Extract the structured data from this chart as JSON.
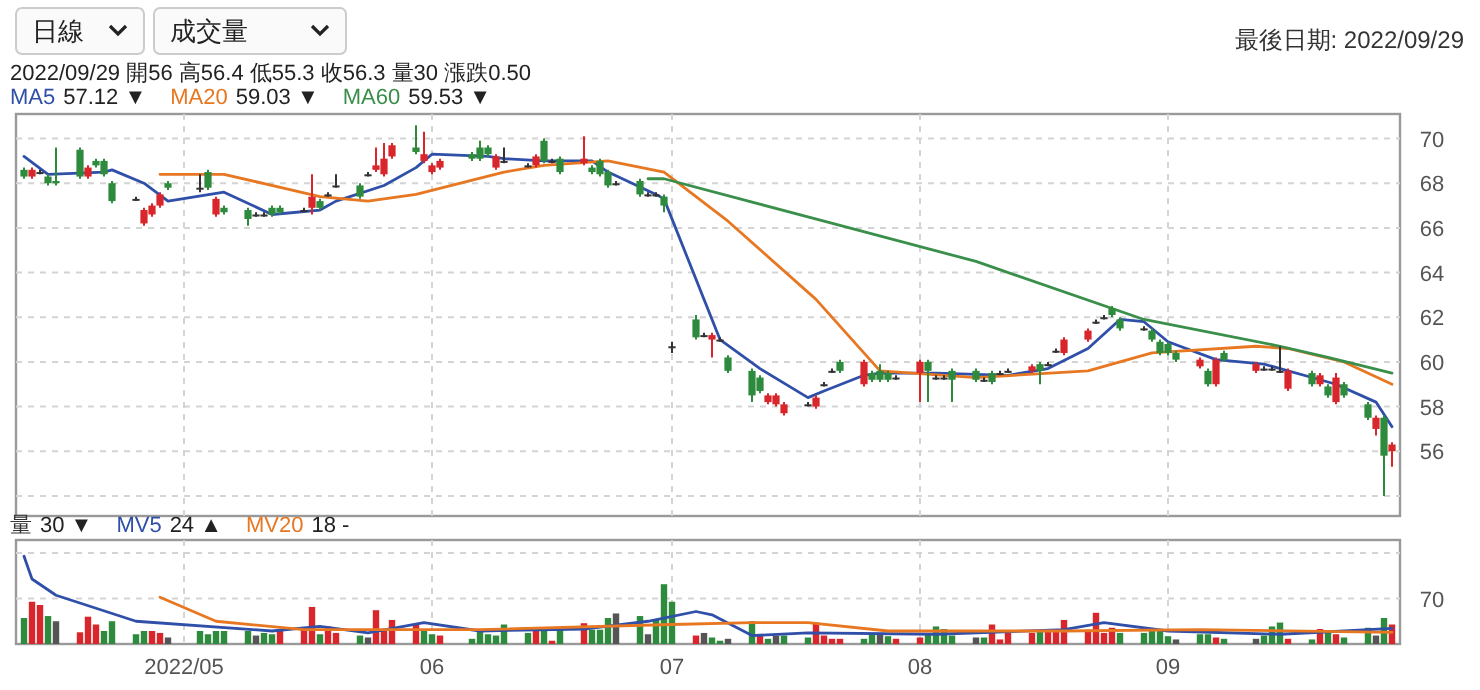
{
  "chart_data": [
    {
      "type": "candlestick",
      "legend": "top left",
      "grid": true,
      "tick_labels": "y",
      "xlim": [
        "2022-04-10",
        "2022-09-30"
      ],
      "xticks": [
        {
          "value": "2022-05-01",
          "label": null
        },
        {
          "value": "2022-06-01",
          "label": null
        },
        {
          "value": "2022-07-01",
          "label": null
        },
        {
          "value": "2022-08-01",
          "label": null
        },
        {
          "value": "2022-09-01",
          "label": null
        }
      ],
      "ylim": [
        53.1,
        71.1
      ],
      "yticks": [
        {
          "value": 54,
          "label": null
        },
        56,
        58,
        60,
        62,
        64,
        66,
        68,
        70
      ],
      "annotations": [
        "57.12 ▼",
        "59.03 ▼",
        "59.53 ▼",
        "2022/09/29 開56 高56.4 低55.3 收56.3 量30 漲跌0.50",
        "最後日期: 2022/09/29",
        "日線",
        "成交量"
      ],
      "x": [
        "2022-04-11",
        "2022-04-12",
        "2022-04-13",
        "2022-04-14",
        "2022-04-15",
        "2022-04-18",
        "2022-04-19",
        "2022-04-20",
        "2022-04-21",
        "2022-04-22",
        "2022-04-25",
        "2022-04-26",
        "2022-04-27",
        "2022-04-28",
        "2022-04-29",
        "2022-05-03",
        "2022-05-04",
        "2022-05-05",
        "2022-05-06",
        "2022-05-09",
        "2022-05-10",
        "2022-05-11",
        "2022-05-12",
        "2022-05-13",
        "2022-05-16",
        "2022-05-17",
        "2022-05-18",
        "2022-05-19",
        "2022-05-20",
        "2022-05-23",
        "2022-05-24",
        "2022-05-25",
        "2022-05-26",
        "2022-05-27",
        "2022-05-30",
        "2022-05-31",
        "2022-06-01",
        "2022-06-02",
        "2022-06-06",
        "2022-06-07",
        "2022-06-08",
        "2022-06-09",
        "2022-06-10",
        "2022-06-13",
        "2022-06-14",
        "2022-06-15",
        "2022-06-16",
        "2022-06-17",
        "2022-06-20",
        "2022-06-21",
        "2022-06-22",
        "2022-06-23",
        "2022-06-24",
        "2022-06-27",
        "2022-06-28",
        "2022-06-29",
        "2022-06-30",
        "2022-07-01",
        "2022-07-04",
        "2022-07-05",
        "2022-07-06",
        "2022-07-07",
        "2022-07-08",
        "2022-07-11",
        "2022-07-12",
        "2022-07-13",
        "2022-07-14",
        "2022-07-15",
        "2022-07-18",
        "2022-07-19",
        "2022-07-20",
        "2022-07-21",
        "2022-07-22",
        "2022-07-25",
        "2022-07-26",
        "2022-07-27",
        "2022-07-28",
        "2022-07-29",
        "2022-08-01",
        "2022-08-02",
        "2022-08-03",
        "2022-08-04",
        "2022-08-05",
        "2022-08-08",
        "2022-08-09",
        "2022-08-10",
        "2022-08-11",
        "2022-08-12",
        "2022-08-15",
        "2022-08-16",
        "2022-08-17",
        "2022-08-18",
        "2022-08-19",
        "2022-08-22",
        "2022-08-23",
        "2022-08-24",
        "2022-08-25",
        "2022-08-26",
        "2022-08-29",
        "2022-08-30",
        "2022-08-31",
        "2022-09-01",
        "2022-09-02",
        "2022-09-05",
        "2022-09-06",
        "2022-09-07",
        "2022-09-08",
        "2022-09-12",
        "2022-09-13",
        "2022-09-14",
        "2022-09-15",
        "2022-09-16",
        "2022-09-19",
        "2022-09-20",
        "2022-09-21",
        "2022-09-22",
        "2022-09-23",
        "2022-09-26",
        "2022-09-27",
        "2022-09-28",
        "2022-09-29"
      ],
      "ohlc": [
        [
          68.6,
          68.7,
          68.2,
          68.3
        ],
        [
          68.3,
          68.7,
          68.2,
          68.6
        ],
        [
          68.5,
          68.6,
          68.4,
          68.5
        ],
        [
          68.3,
          68.4,
          67.9,
          68.0
        ],
        [
          68.1,
          69.6,
          67.9,
          68.0
        ],
        [
          69.5,
          69.6,
          68.2,
          68.3
        ],
        [
          68.3,
          68.8,
          68.2,
          68.7
        ],
        [
          69.0,
          69.1,
          68.7,
          68.8
        ],
        [
          69.0,
          69.1,
          68.3,
          68.4
        ],
        [
          68.0,
          68.1,
          67.1,
          67.2
        ],
        [
          67.3,
          67.4,
          67.2,
          67.3
        ],
        [
          66.2,
          66.9,
          66.1,
          66.8
        ],
        [
          66.6,
          67.1,
          66.5,
          67.0
        ],
        [
          67.0,
          67.6,
          66.9,
          67.5
        ],
        [
          68.0,
          68.1,
          67.7,
          67.8
        ],
        [
          67.8,
          68.4,
          67.6,
          67.8
        ],
        [
          68.5,
          68.6,
          67.7,
          67.8
        ],
        [
          66.6,
          67.4,
          66.5,
          67.3
        ],
        [
          66.9,
          67.0,
          66.6,
          66.7
        ],
        [
          66.8,
          66.9,
          66.1,
          66.4
        ],
        [
          66.6,
          66.7,
          66.5,
          66.6
        ],
        [
          66.6,
          66.7,
          66.5,
          66.6
        ],
        [
          66.9,
          67.0,
          66.5,
          66.6
        ],
        [
          66.9,
          67.0,
          66.6,
          66.7
        ],
        [
          66.8,
          66.9,
          66.7,
          66.8
        ],
        [
          66.9,
          68.4,
          66.6,
          67.4
        ],
        [
          67.2,
          67.3,
          66.8,
          66.9
        ],
        [
          67.5,
          67.6,
          67.4,
          67.5
        ],
        [
          67.9,
          68.4,
          67.8,
          67.9
        ],
        [
          67.9,
          68.0,
          67.3,
          67.4
        ],
        [
          68.4,
          68.5,
          68.3,
          68.4
        ],
        [
          68.6,
          69.6,
          68.5,
          68.8
        ],
        [
          68.4,
          69.8,
          68.3,
          69.1
        ],
        [
          69.2,
          69.8,
          69.1,
          69.7
        ],
        [
          69.6,
          70.6,
          69.3,
          69.4
        ],
        [
          69.0,
          70.3,
          68.9,
          69.3
        ],
        [
          68.5,
          68.9,
          68.4,
          68.8
        ],
        [
          68.7,
          69.1,
          68.6,
          69.0
        ],
        [
          69.3,
          69.4,
          69.0,
          69.1
        ],
        [
          69.6,
          69.9,
          69.0,
          69.1
        ],
        [
          69.6,
          69.7,
          69.2,
          69.3
        ],
        [
          68.7,
          69.3,
          68.6,
          69.2
        ],
        [
          69.0,
          69.6,
          68.9,
          69.0
        ],
        [
          68.8,
          68.9,
          68.7,
          68.8
        ],
        [
          68.8,
          69.3,
          68.7,
          69.2
        ],
        [
          69.9,
          70.0,
          68.9,
          69.0
        ],
        [
          69.0,
          69.1,
          68.9,
          69.0
        ],
        [
          69.1,
          69.2,
          68.4,
          68.5
        ],
        [
          68.9,
          70.1,
          68.8,
          69.1
        ],
        [
          68.7,
          68.8,
          68.4,
          68.5
        ],
        [
          69.0,
          69.1,
          68.3,
          68.4
        ],
        [
          68.5,
          68.6,
          67.8,
          67.9
        ],
        [
          68.0,
          68.1,
          67.9,
          68.0
        ],
        [
          68.1,
          68.2,
          67.4,
          67.5
        ],
        [
          67.5,
          67.6,
          67.4,
          67.5
        ],
        [
          67.5,
          67.6,
          67.4,
          67.5
        ],
        [
          67.4,
          67.5,
          66.7,
          67.0
        ],
        [
          60.7,
          60.9,
          60.4,
          60.7
        ],
        [
          61.9,
          62.1,
          61.0,
          61.1
        ],
        [
          61.2,
          61.3,
          61.1,
          61.2
        ],
        [
          61.0,
          61.3,
          60.2,
          61.2
        ],
        [
          61.0,
          61.1,
          60.9,
          61.0
        ],
        [
          60.2,
          60.3,
          59.5,
          59.6
        ],
        [
          59.6,
          59.7,
          58.2,
          58.5
        ],
        [
          59.3,
          59.4,
          58.6,
          58.7
        ],
        [
          58.2,
          58.6,
          58.1,
          58.5
        ],
        [
          58.1,
          58.6,
          58.0,
          58.5
        ],
        [
          57.7,
          58.2,
          57.6,
          58.1
        ],
        [
          58.1,
          58.2,
          58.0,
          58.1
        ],
        [
          58.0,
          58.5,
          57.9,
          58.4
        ],
        [
          59.0,
          59.1,
          58.9,
          59.0
        ],
        [
          59.6,
          59.7,
          59.5,
          59.6
        ],
        [
          60.0,
          60.1,
          59.5,
          59.6
        ],
        [
          59.0,
          60.1,
          58.9,
          60.0
        ],
        [
          59.5,
          59.6,
          59.1,
          59.2
        ],
        [
          59.6,
          59.9,
          59.1,
          59.2
        ],
        [
          59.5,
          59.6,
          59.1,
          59.2
        ],
        [
          59.3,
          59.4,
          59.2,
          59.3
        ],
        [
          59.5,
          60.1,
          58.2,
          60.0
        ],
        [
          60.0,
          60.1,
          58.2,
          59.6
        ],
        [
          59.3,
          59.4,
          59.2,
          59.3
        ],
        [
          59.3,
          59.4,
          59.2,
          59.3
        ],
        [
          59.6,
          59.7,
          58.2,
          59.2
        ],
        [
          59.6,
          59.7,
          59.1,
          59.2
        ],
        [
          59.2,
          59.3,
          59.1,
          59.2
        ],
        [
          59.5,
          59.6,
          59.0,
          59.1
        ],
        [
          59.5,
          59.6,
          59.4,
          59.5
        ],
        [
          59.6,
          59.7,
          59.5,
          59.6
        ],
        [
          59.6,
          59.9,
          59.5,
          59.8
        ],
        [
          59.9,
          60.0,
          59.0,
          59.6
        ],
        [
          59.9,
          60.0,
          59.8,
          59.9
        ],
        [
          60.5,
          60.6,
          60.4,
          60.5
        ],
        [
          60.4,
          61.1,
          60.3,
          61.0
        ],
        [
          61.0,
          61.5,
          60.9,
          61.4
        ],
        [
          61.8,
          61.9,
          61.7,
          61.8
        ],
        [
          62.0,
          62.1,
          61.9,
          62.0
        ],
        [
          62.4,
          62.5,
          62.0,
          62.1
        ],
        [
          61.9,
          62.0,
          61.4,
          61.5
        ],
        [
          61.5,
          61.6,
          61.4,
          61.5
        ],
        [
          61.4,
          61.5,
          60.9,
          61.0
        ],
        [
          60.9,
          61.0,
          60.3,
          60.4
        ],
        [
          60.8,
          60.9,
          60.3,
          60.4
        ],
        [
          60.4,
          60.5,
          60.0,
          60.1
        ],
        [
          59.8,
          60.2,
          59.7,
          60.1
        ],
        [
          59.6,
          59.7,
          58.9,
          59.0
        ],
        [
          59.0,
          60.2,
          58.9,
          60.1
        ],
        [
          60.4,
          60.5,
          60.0,
          60.1
        ],
        [
          59.6,
          60.0,
          59.5,
          59.9
        ],
        [
          59.7,
          59.8,
          59.6,
          59.7
        ],
        [
          59.7,
          59.8,
          59.6,
          59.7
        ],
        [
          59.6,
          60.7,
          59.5,
          59.6
        ],
        [
          58.8,
          59.7,
          58.7,
          59.6
        ],
        [
          59.5,
          59.6,
          58.9,
          59.0
        ],
        [
          59.0,
          59.5,
          58.9,
          59.4
        ],
        [
          58.9,
          59.0,
          58.4,
          58.5
        ],
        [
          58.2,
          59.5,
          58.1,
          59.3
        ],
        [
          59.0,
          59.1,
          58.4,
          58.5
        ],
        [
          58.1,
          58.2,
          57.4,
          57.5
        ],
        [
          57.0,
          57.6,
          56.7,
          57.5
        ],
        [
          57.5,
          57.6,
          54.0,
          55.8
        ],
        [
          56.0,
          56.4,
          55.3,
          56.3
        ]
      ],
      "colors": [
        "#2e8b3e",
        "#d8262c",
        "#333333",
        "#2e8b3e",
        "#2e8b3e",
        "#2e8b3e",
        "#d8262c",
        "#2e8b3e",
        "#2e8b3e",
        "#2e8b3e",
        "#333333",
        "#d8262c",
        "#d8262c",
        "#d8262c",
        "#2e8b3e",
        "#333333",
        "#2e8b3e",
        "#d8262c",
        "#2e8b3e",
        "#2e8b3e",
        "#333333",
        "#333333",
        "#2e8b3e",
        "#2e8b3e",
        "#333333",
        "#d8262c",
        "#2e8b3e",
        "#333333",
        "#333333",
        "#2e8b3e",
        "#333333",
        "#d8262c",
        "#d8262c",
        "#d8262c",
        "#2e8b3e",
        "#d8262c",
        "#d8262c",
        "#d8262c",
        "#2e8b3e",
        "#2e8b3e",
        "#2e8b3e",
        "#d8262c",
        "#333333",
        "#333333",
        "#d8262c",
        "#2e8b3e",
        "#333333",
        "#2e8b3e",
        "#d8262c",
        "#2e8b3e",
        "#2e8b3e",
        "#2e8b3e",
        "#333333",
        "#2e8b3e",
        "#333333",
        "#333333",
        "#2e8b3e",
        "#333333",
        "#2e8b3e",
        "#333333",
        "#d8262c",
        "#333333",
        "#2e8b3e",
        "#2e8b3e",
        "#2e8b3e",
        "#d8262c",
        "#d8262c",
        "#d8262c",
        "#333333",
        "#d8262c",
        "#333333",
        "#333333",
        "#2e8b3e",
        "#d8262c",
        "#2e8b3e",
        "#2e8b3e",
        "#2e8b3e",
        "#333333",
        "#d8262c",
        "#2e8b3e",
        "#333333",
        "#333333",
        "#2e8b3e",
        "#2e8b3e",
        "#333333",
        "#2e8b3e",
        "#333333",
        "#333333",
        "#d8262c",
        "#2e8b3e",
        "#333333",
        "#333333",
        "#d8262c",
        "#d8262c",
        "#333333",
        "#333333",
        "#2e8b3e",
        "#2e8b3e",
        "#333333",
        "#2e8b3e",
        "#2e8b3e",
        "#2e8b3e",
        "#2e8b3e",
        "#d8262c",
        "#2e8b3e",
        "#d8262c",
        "#2e8b3e",
        "#d8262c",
        "#333333",
        "#333333",
        "#333333",
        "#d8262c",
        "#2e8b3e",
        "#d8262c",
        "#2e8b3e",
        "#d8262c",
        "#2e8b3e",
        "#2e8b3e",
        "#d8262c",
        "#2e8b3e",
        "#d8262c"
      ],
      "series": [
        {
          "name": "MA5",
          "type": "line",
          "color": "#2f4fa8",
          "x": [
            "2022-04-11",
            "2022-04-14",
            "2022-04-21",
            "2022-04-22",
            "2022-04-26",
            "2022-04-29",
            "2022-05-06",
            "2022-05-12",
            "2022-05-18",
            "2022-05-20",
            "2022-05-26",
            "2022-05-30",
            "2022-06-01",
            "2022-06-08",
            "2022-06-10",
            "2022-06-15",
            "2022-06-21",
            "2022-06-23",
            "2022-06-29",
            "2022-06-30",
            "2022-07-07",
            "2022-07-12",
            "2022-07-18",
            "2022-07-20",
            "2022-07-25",
            "2022-07-27",
            "2022-08-03",
            "2022-08-12",
            "2022-08-17",
            "2022-08-22",
            "2022-08-26",
            "2022-08-29",
            "2022-09-01",
            "2022-09-07",
            "2022-09-13",
            "2022-09-20",
            "2022-09-22",
            "2022-09-27",
            "2022-09-29"
          ],
          "values": [
            69.2,
            68.4,
            68.5,
            68.6,
            68.0,
            67.2,
            67.6,
            66.6,
            66.8,
            67.2,
            67.9,
            68.7,
            69.3,
            69.2,
            69.1,
            69.0,
            69.0,
            68.5,
            67.5,
            67.3,
            61.0,
            59.7,
            58.4,
            58.7,
            59.4,
            59.5,
            59.5,
            59.4,
            59.7,
            60.6,
            61.9,
            61.8,
            60.9,
            60.1,
            59.9,
            59.2,
            59.0,
            58.2,
            57.1
          ]
        },
        {
          "name": "MA20",
          "type": "line",
          "color": "#e87722",
          "x": [
            "2022-04-28",
            "2022-05-06",
            "2022-05-18",
            "2022-05-24",
            "2022-05-30",
            "2022-06-10",
            "2022-06-15",
            "2022-06-23",
            "2022-06-30",
            "2022-07-08",
            "2022-07-19",
            "2022-07-27",
            "2022-08-08",
            "2022-08-22",
            "2022-08-30",
            "2022-09-12",
            "2022-09-16",
            "2022-09-23",
            "2022-09-29"
          ],
          "values": [
            68.4,
            68.4,
            67.4,
            67.2,
            67.5,
            68.5,
            68.8,
            69.0,
            68.5,
            66.3,
            62.8,
            59.6,
            59.3,
            59.6,
            60.4,
            60.7,
            60.6,
            60.0,
            59.0
          ]
        },
        {
          "name": "MA60",
          "type": "line",
          "color": "#3a8f4a",
          "x": [
            "2022-06-28",
            "2022-06-30",
            "2022-07-20",
            "2022-08-08",
            "2022-08-29",
            "2022-09-15",
            "2022-09-21",
            "2022-09-29"
          ],
          "values": [
            68.2,
            68.2,
            66.3,
            64.5,
            61.9,
            60.7,
            60.2,
            59.5
          ]
        }
      ]
    },
    {
      "type": "bar",
      "legend": "top left",
      "grid": true,
      "xlim": [
        "2022-04-10",
        "2022-09-30"
      ],
      "xticks": [
        {
          "value": "2022-05-01",
          "label": "2022/05"
        },
        {
          "value": "2022-06-01",
          "label": "06"
        },
        {
          "value": "2022-07-01",
          "label": "07"
        },
        {
          "value": "2022-08-01",
          "label": "08"
        },
        {
          "value": "2022-09-01",
          "label": "09"
        }
      ],
      "ylim": [
        0,
        160
      ],
      "yticks": [
        70,
        {
          "value": 140,
          "label": null
        }
      ],
      "annotations": [
        "30 ▼",
        "24 ▲",
        "18 -"
      ],
      "x": [
        "2022-04-11",
        "2022-04-12",
        "2022-04-13",
        "2022-04-14",
        "2022-04-15",
        "2022-04-18",
        "2022-04-19",
        "2022-04-20",
        "2022-04-21",
        "2022-04-22",
        "2022-04-25",
        "2022-04-26",
        "2022-04-27",
        "2022-04-28",
        "2022-04-29",
        "2022-05-03",
        "2022-05-04",
        "2022-05-05",
        "2022-05-06",
        "2022-05-09",
        "2022-05-10",
        "2022-05-11",
        "2022-05-12",
        "2022-05-13",
        "2022-05-16",
        "2022-05-17",
        "2022-05-18",
        "2022-05-19",
        "2022-05-20",
        "2022-05-23",
        "2022-05-24",
        "2022-05-25",
        "2022-05-26",
        "2022-05-27",
        "2022-05-30",
        "2022-05-31",
        "2022-06-01",
        "2022-06-02",
        "2022-06-06",
        "2022-06-07",
        "2022-06-08",
        "2022-06-09",
        "2022-06-10",
        "2022-06-13",
        "2022-06-14",
        "2022-06-15",
        "2022-06-16",
        "2022-06-17",
        "2022-06-20",
        "2022-06-21",
        "2022-06-22",
        "2022-06-23",
        "2022-06-24",
        "2022-06-27",
        "2022-06-28",
        "2022-06-29",
        "2022-06-30",
        "2022-07-01",
        "2022-07-04",
        "2022-07-05",
        "2022-07-06",
        "2022-07-07",
        "2022-07-08",
        "2022-07-11",
        "2022-07-12",
        "2022-07-13",
        "2022-07-14",
        "2022-07-15",
        "2022-07-18",
        "2022-07-19",
        "2022-07-20",
        "2022-07-21",
        "2022-07-22",
        "2022-07-25",
        "2022-07-26",
        "2022-07-27",
        "2022-07-28",
        "2022-07-29",
        "2022-08-01",
        "2022-08-02",
        "2022-08-03",
        "2022-08-04",
        "2022-08-05",
        "2022-08-08",
        "2022-08-09",
        "2022-08-10",
        "2022-08-11",
        "2022-08-12",
        "2022-08-15",
        "2022-08-16",
        "2022-08-17",
        "2022-08-18",
        "2022-08-19",
        "2022-08-22",
        "2022-08-23",
        "2022-08-24",
        "2022-08-25",
        "2022-08-26",
        "2022-08-29",
        "2022-08-30",
        "2022-08-31",
        "2022-09-01",
        "2022-09-02",
        "2022-09-05",
        "2022-09-06",
        "2022-09-07",
        "2022-09-08",
        "2022-09-12",
        "2022-09-13",
        "2022-09-14",
        "2022-09-15",
        "2022-09-16",
        "2022-09-19",
        "2022-09-20",
        "2022-09-21",
        "2022-09-22",
        "2022-09-23",
        "2022-09-26",
        "2022-09-27",
        "2022-09-28",
        "2022-09-29"
      ],
      "series": [
        {
          "name": "量",
          "values": [
            40,
            65,
            60,
            43,
            35,
            18,
            42,
            30,
            20,
            35,
            15,
            20,
            20,
            17,
            10,
            20,
            15,
            20,
            20,
            20,
            13,
            17,
            15,
            20,
            25,
            57,
            15,
            27,
            17,
            13,
            10,
            52,
            22,
            37,
            30,
            20,
            15,
            13,
            8,
            22,
            15,
            13,
            30,
            17,
            20,
            22,
            5,
            22,
            32,
            22,
            22,
            40,
            47,
            43,
            15,
            37,
            92,
            65,
            13,
            17,
            10,
            5,
            8,
            35,
            13,
            8,
            13,
            13,
            10,
            33,
            13,
            8,
            8,
            8,
            15,
            15,
            12,
            8,
            10,
            15,
            27,
            23,
            13,
            10,
            10,
            30,
            7,
            17,
            17,
            20,
            20,
            20,
            37,
            22,
            48,
            17,
            25,
            17,
            17,
            22,
            22,
            12,
            7,
            15,
            15,
            10,
            8,
            8,
            13,
            27,
            33,
            8,
            7,
            23,
            20,
            15,
            10,
            25,
            13,
            40,
            30
          ],
          "colors": [
            "#2e8b3e",
            "#d8262c",
            "#d8262c",
            "#2e8b3e",
            "#555555",
            "#d8262c",
            "#d8262c",
            "#d8262c",
            "#2e8b3e",
            "#2e8b3e",
            "#2e8b3e",
            "#2e8b3e",
            "#d8262c",
            "#d8262c",
            "#555555",
            "#2e8b3e",
            "#2e8b3e",
            "#2e8b3e",
            "#2e8b3e",
            "#2e8b3e",
            "#555555",
            "#2e8b3e",
            "#2e8b3e",
            "#d8262c",
            "#d8262c",
            "#d8262c",
            "#2e8b3e",
            "#d8262c",
            "#d8262c",
            "#2e8b3e",
            "#555555",
            "#d8262c",
            "#d8262c",
            "#d8262c",
            "#d8262c",
            "#2e8b3e",
            "#2e8b3e",
            "#d8262c",
            "#2e8b3e",
            "#2e8b3e",
            "#2e8b3e",
            "#2e8b3e",
            "#2e8b3e",
            "#2e8b3e",
            "#d8262c",
            "#2e8b3e",
            "#d8262c",
            "#2e8b3e",
            "#d8262c",
            "#2e8b3e",
            "#2e8b3e",
            "#2e8b3e",
            "#555555",
            "#2e8b3e",
            "#555555",
            "#2e8b3e",
            "#2e8b3e",
            "#2e8b3e",
            "#d8262c",
            "#555555",
            "#2e8b3e",
            "#2e8b3e",
            "#555555",
            "#2e8b3e",
            "#d8262c",
            "#2e8b3e",
            "#555555",
            "#2e8b3e",
            "#2e8b3e",
            "#d8262c",
            "#d8262c",
            "#d8262c",
            "#d8262c",
            "#2e8b3e",
            "#2e8b3e",
            "#555555",
            "#2e8b3e",
            "#d8262c",
            "#d8262c",
            "#2e8b3e",
            "#2e8b3e",
            "#2e8b3e",
            "#2e8b3e",
            "#555555",
            "#2e8b3e",
            "#d8262c",
            "#d8262c",
            "#d8262c",
            "#d8262c",
            "#2e8b3e",
            "#d8262c",
            "#d8262c",
            "#d8262c",
            "#d8262c",
            "#d8262c",
            "#d8262c",
            "#d8262c",
            "#2e8b3e",
            "#2e8b3e",
            "#2e8b3e",
            "#2e8b3e",
            "#2e8b3e",
            "#555555",
            "#2e8b3e",
            "#2e8b3e",
            "#d8262c",
            "#2e8b3e",
            "#555555",
            "#2e8b3e",
            "#2e8b3e",
            "#2e8b3e",
            "#d8262c",
            "#2e8b3e",
            "#d8262c",
            "#2e8b3e",
            "#d8262c",
            "#2e8b3e",
            "#2e8b3e",
            "#555555",
            "#2e8b3e",
            "#d8262c"
          ]
        },
        {
          "name": "MV5",
          "type": "line",
          "color": "#2f4fa8",
          "x": [
            "2022-04-11",
            "2022-04-12",
            "2022-04-15",
            "2022-04-25",
            "2022-05-12",
            "2022-05-18",
            "2022-05-24",
            "2022-05-31",
            "2022-06-07",
            "2022-06-20",
            "2022-06-28",
            "2022-07-04",
            "2022-07-06",
            "2022-07-11",
            "2022-07-18",
            "2022-08-03",
            "2022-08-19",
            "2022-08-24",
            "2022-09-01",
            "2022-09-15",
            "2022-09-23",
            "2022-09-29"
          ],
          "values": [
            135,
            100,
            75,
            35,
            20,
            27,
            17,
            33,
            20,
            23,
            35,
            50,
            45,
            13,
            17,
            15,
            22,
            33,
            20,
            15,
            20,
            24
          ]
        },
        {
          "name": "MV20",
          "type": "line",
          "color": "#e87722",
          "x": [
            "2022-04-28",
            "2022-05-05",
            "2022-05-16",
            "2022-06-07",
            "2022-07-01",
            "2022-07-11",
            "2022-07-18",
            "2022-07-28",
            "2022-08-19",
            "2022-09-05",
            "2022-09-29"
          ],
          "values": [
            72,
            35,
            22,
            22,
            30,
            33,
            33,
            20,
            20,
            22,
            18
          ]
        }
      ]
    }
  ]
}
